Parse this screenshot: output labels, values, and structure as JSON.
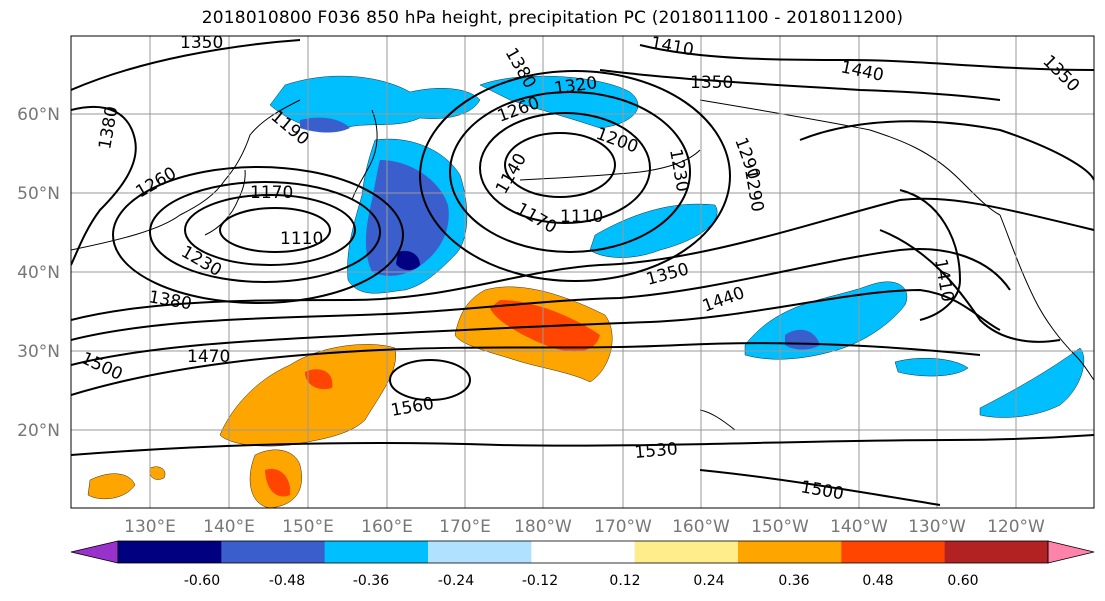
{
  "title": "2018010800 F036 850 hPa height, precipitation PC (2018011100 - 2018011200)",
  "lon_labels": [
    "130°E",
    "140°E",
    "150°E",
    "160°E",
    "170°E",
    "180°W",
    "170°W",
    "160°W",
    "150°W",
    "140°W",
    "130°W",
    "120°W"
  ],
  "lat_labels": [
    "60°N",
    "50°N",
    "40°N",
    "30°N",
    "20°N"
  ],
  "contour_labels": [
    "1350",
    "1410",
    "1350",
    "1440",
    "1350",
    "1380",
    "1260",
    "1320",
    "1200",
    "1230",
    "1290",
    "1190",
    "1260",
    "1170",
    "1140",
    "1110",
    "1170",
    "1110",
    "1230",
    "1380",
    "1350",
    "1410",
    "1440",
    "1470",
    "1500",
    "1560",
    "1530",
    "1500",
    "1380",
    "1290"
  ],
  "colorbar": {
    "ticks": [
      "-0.60",
      "-0.48",
      "-0.36",
      "-0.24",
      "-0.12",
      "0.12",
      "0.24",
      "0.36",
      "0.48",
      "0.60"
    ],
    "colors": [
      "#9932cc",
      "#000080",
      "#3a5fcd",
      "#00bfff",
      "#b0e2ff",
      "#ffffff",
      "#ffec8b",
      "#ffa500",
      "#ff4500",
      "#b22222",
      "#ff82ab"
    ]
  }
}
